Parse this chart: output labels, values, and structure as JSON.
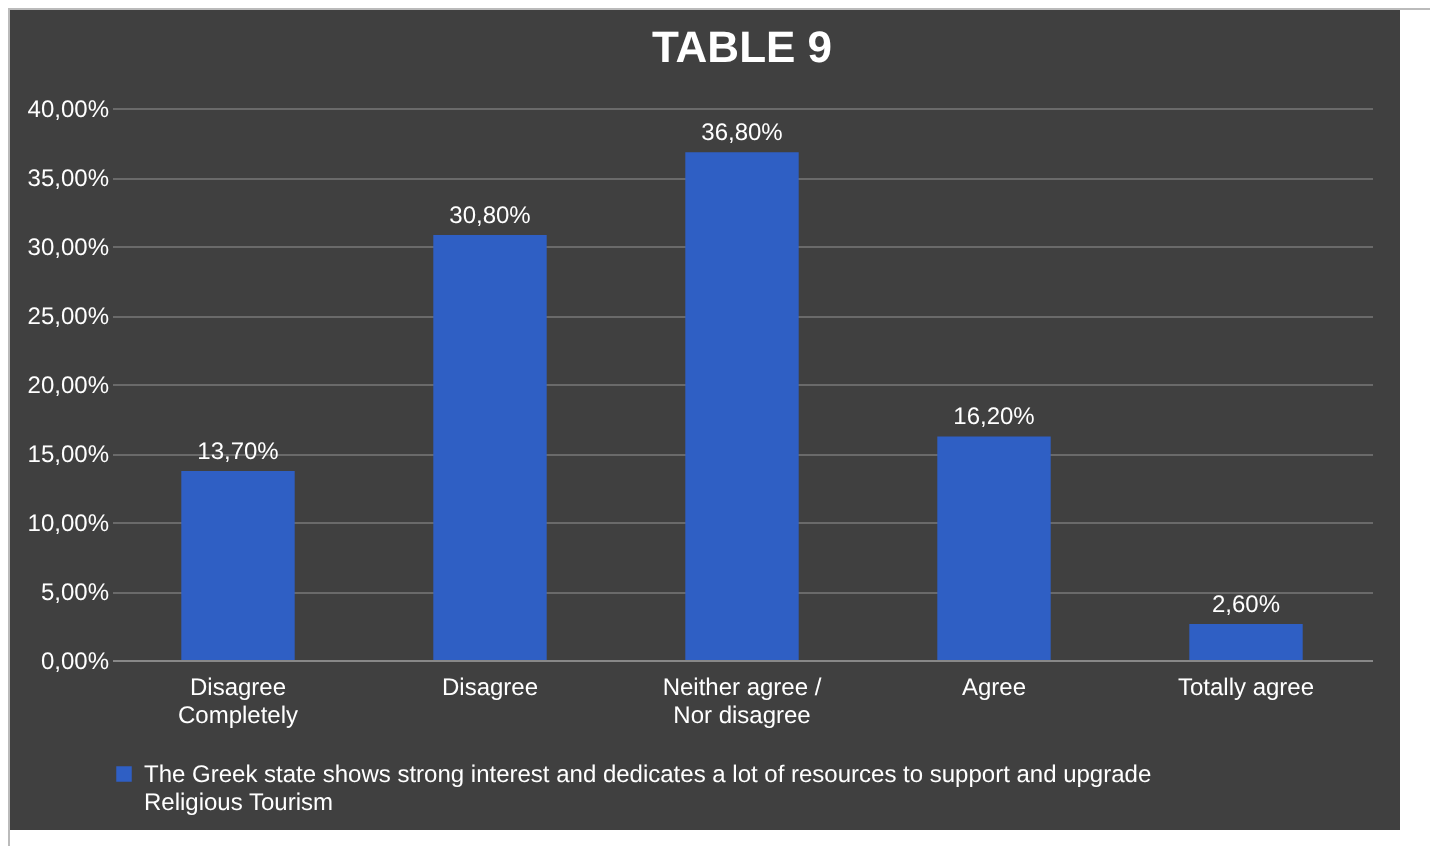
{
  "chart_data": {
    "type": "bar",
    "title": "TABLE 9",
    "categories": [
      "Disagree Completely",
      "Disagree",
      "Neither agree / Nor disagree",
      "Agree",
      "Totally agree"
    ],
    "series": [
      {
        "name": "The Greek state shows strong interest and dedicates a lot of resources to support and upgrade Religious Tourism",
        "color": "#2f5fc4",
        "values": [
          13.7,
          30.8,
          36.8,
          16.2,
          2.6
        ],
        "value_labels": [
          "13,70%",
          "30,80%",
          "36,80%",
          "16,20%",
          "2,60%"
        ]
      }
    ],
    "ylim": [
      0,
      40
    ],
    "yticks": [
      {
        "value": 0,
        "label": "0,00%"
      },
      {
        "value": 5,
        "label": "5,00%"
      },
      {
        "value": 10,
        "label": "10,00%"
      },
      {
        "value": 15,
        "label": "15,00%"
      },
      {
        "value": 20,
        "label": "20,00%"
      },
      {
        "value": 25,
        "label": "25,00%"
      },
      {
        "value": 30,
        "label": "30,00%"
      },
      {
        "value": 35,
        "label": "35,00%"
      },
      {
        "value": 40,
        "label": "40,00%"
      }
    ],
    "grid": "y",
    "legend": "bottom"
  }
}
